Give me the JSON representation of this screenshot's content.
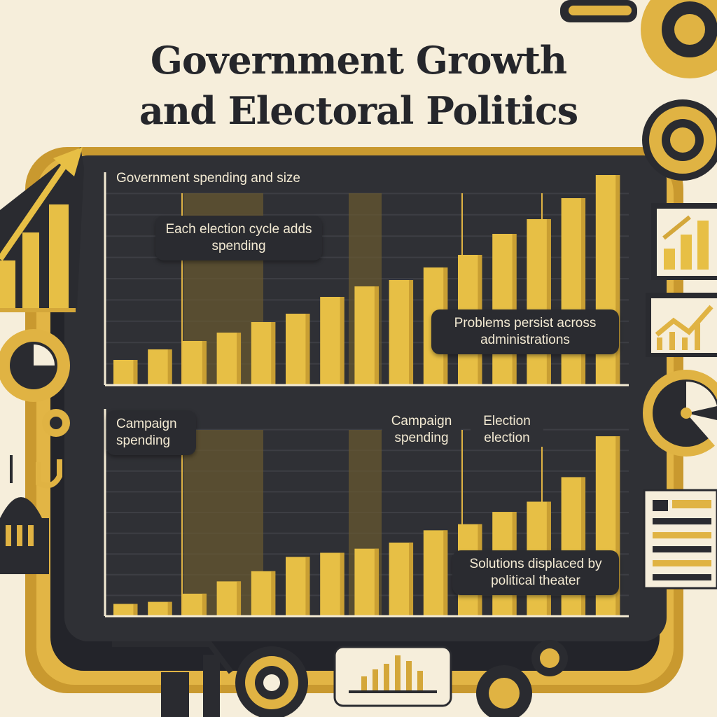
{
  "title_line1": "Government Growth",
  "title_line2": "and Electoral Politics",
  "chart_data": [
    {
      "type": "bar",
      "title": "Government spending and size",
      "values": [
        12,
        17,
        21,
        25,
        30,
        34,
        42,
        47,
        50,
        56,
        62,
        72,
        79,
        89,
        100
      ],
      "ylim": [
        0,
        100
      ],
      "grid": true,
      "annotations": [
        "Each election cycle adds spending",
        "Problems persist across administrations"
      ]
    },
    {
      "type": "bar",
      "title": "",
      "values": [
        6,
        7,
        11,
        17,
        22,
        29,
        31,
        33,
        36,
        42,
        45,
        51,
        56,
        68,
        88
      ],
      "ylim": [
        0,
        100
      ],
      "grid": true,
      "annotations": [
        "Campaign spending",
        "Campaign spending",
        "Election election",
        "Solutions displaced by political theater"
      ]
    }
  ],
  "colors": {
    "background": "#f6eedb",
    "panel": "#2d2e33",
    "bar": "#e7bf45",
    "accent_gold": "#d4a73a",
    "text_dark": "#25262b"
  },
  "icons": [
    "arrow-bar-chart-icon",
    "gear-icon",
    "pie-gear-icon",
    "capitol-icon",
    "growth-chart-icon",
    "line-chart-icon",
    "pie-chart-icon",
    "document-icon",
    "mini-bar-chart-icon",
    "target-icon"
  ]
}
